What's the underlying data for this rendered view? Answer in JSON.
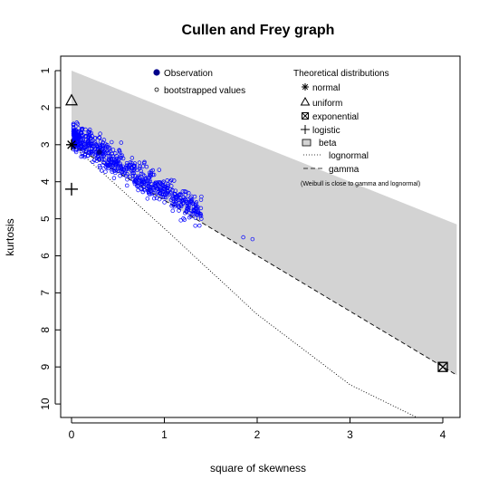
{
  "chart_data": {
    "type": "scatter",
    "title": "Cullen and Frey graph",
    "xlabel": "square of skewness",
    "ylabel": "kurtosis",
    "xlim": [
      -0.1,
      4.15
    ],
    "ylim": [
      10.4,
      0.6
    ],
    "y_reversed": true,
    "xticks": [
      0,
      1,
      2,
      3,
      4
    ],
    "yticks": [
      1,
      2,
      3,
      4,
      5,
      6,
      7,
      8,
      9,
      10
    ],
    "grid": false,
    "legend_left": {
      "placement": "top-center",
      "entries": [
        {
          "label": "Observation",
          "marker": "filled-circle",
          "color": "#00008b"
        },
        {
          "label": "bootstrapped values",
          "marker": "open-circle",
          "color": "#000000"
        }
      ]
    },
    "legend_right": {
      "placement": "top-right",
      "title": "Theoretical distributions",
      "entries": [
        {
          "label": "normal",
          "marker": "asterisk"
        },
        {
          "label": "uniform",
          "marker": "triangle"
        },
        {
          "label": "exponential",
          "marker": "boxed-x"
        },
        {
          "label": "logistic",
          "marker": "plus"
        },
        {
          "label": "beta",
          "marker": "gray-box"
        },
        {
          "label": "lognormal",
          "line": "dotted"
        },
        {
          "label": "gamma",
          "line": "dashed"
        }
      ],
      "note": "(Weibull is close to gamma and lognormal)"
    },
    "theoretical_points": [
      {
        "name": "uniform",
        "x": 0,
        "y": 1.8,
        "marker": "triangle"
      },
      {
        "name": "normal",
        "x": 0,
        "y": 3.0,
        "marker": "asterisk"
      },
      {
        "name": "logistic",
        "x": 0,
        "y": 4.2,
        "marker": "plus"
      },
      {
        "name": "exponential",
        "x": 4,
        "y": 9.0,
        "marker": "boxed-x"
      }
    ],
    "beta_region": {
      "color": "#d3d3d3",
      "polygon": [
        [
          0,
          1
        ],
        [
          4.15,
          5.15
        ],
        [
          4.15,
          9.22
        ],
        [
          0,
          3
        ]
      ]
    },
    "gamma_line": {
      "style": "dashed",
      "x": [
        0,
        4.15
      ],
      "y": [
        3,
        9.22
      ]
    },
    "lognormal_line": {
      "style": "dotted",
      "x": [
        0,
        1,
        2,
        3,
        3.75
      ],
      "y": [
        3,
        5.26,
        7.58,
        9.48,
        10.4
      ]
    },
    "observation": {
      "x": 0.3,
      "y": 3.2,
      "color": "#00008b"
    },
    "bootstrap": {
      "color_inside": "#0000ff",
      "color_outside": "#000000",
      "count": 700,
      "x_range": [
        0.02,
        1.4
      ],
      "y_center_intercept": 2.75,
      "y_center_slope": 1.5,
      "outliers": [
        [
          1.85,
          5.5
        ],
        [
          1.95,
          5.55
        ]
      ]
    }
  }
}
